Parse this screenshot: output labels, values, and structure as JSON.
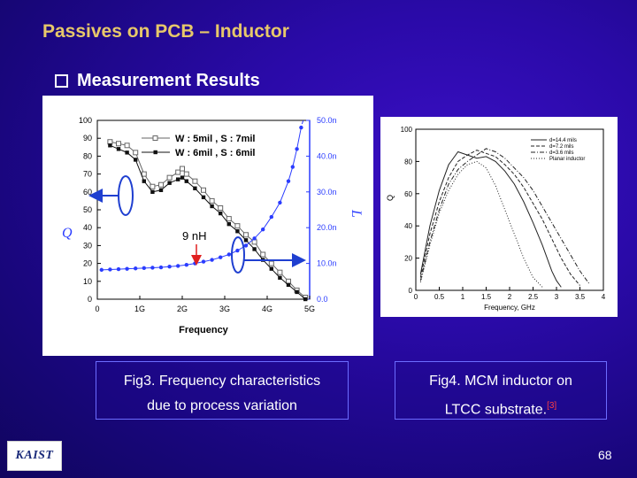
{
  "title": "Passives on PCB – Inductor",
  "bullet": "Measurement Results",
  "fig3": {
    "caption_line1": "Fig3. Frequency characteristics",
    "caption_line2": "due to process variation",
    "legend_1": "W : 5mil , S : 7mil",
    "legend_2": "W : 6mil , S : 6mil",
    "annotation": "9 nH",
    "xlabel": "Frequency",
    "ylabel_left": "Q",
    "ylabel_right": "L"
  },
  "fig4": {
    "caption_line1": "Fig4. MCM inductor on",
    "caption_line2": "LTCC substrate.",
    "ref": "[3]",
    "xlabel": "Frequency, GHz",
    "ylabel": "Q",
    "legend": [
      "d=14.4 mils",
      "d=7.2 mils",
      "d=3.6 mils",
      "Planar inductor"
    ]
  },
  "page_number": "68",
  "logo_text": "KAIST",
  "chart_data": [
    {
      "type": "line",
      "title": "",
      "xlabel": "Frequency",
      "ylabel": "Q",
      "x_ticks": [
        "0",
        "1G",
        "2G",
        "3G",
        "4G",
        "5G"
      ],
      "xlim": [
        0,
        5
      ],
      "ylim": [
        0,
        100
      ],
      "y_ticks": [
        "0",
        "10",
        "20",
        "30",
        "40",
        "50",
        "60",
        "70",
        "80",
        "90",
        "100"
      ],
      "y2_label": "L",
      "y2lim": [
        0,
        50
      ],
      "y2_ticks": [
        "0.0",
        "10.0n",
        "20.0n",
        "30.0n",
        "40.0n",
        "50.0n"
      ],
      "series": [
        {
          "name": "W : 5mil , S : 7mil",
          "axis": "Q",
          "marker": "open-square",
          "x": [
            0.3,
            0.5,
            0.7,
            0.9,
            1.1,
            1.3,
            1.5,
            1.7,
            1.9,
            2.0,
            2.1,
            2.3,
            2.5,
            2.7,
            2.9,
            3.1,
            3.3,
            3.5,
            3.7,
            3.9,
            4.1,
            4.3,
            4.5,
            4.7,
            4.9
          ],
          "y": [
            88,
            87,
            86,
            82,
            70,
            63,
            64,
            68,
            71,
            73,
            70,
            66,
            61,
            55,
            51,
            45,
            41,
            36,
            32,
            25,
            20,
            15,
            10,
            5,
            1
          ]
        },
        {
          "name": "W : 6mil , S : 6mil",
          "axis": "Q",
          "marker": "filled-square",
          "x": [
            0.3,
            0.5,
            0.7,
            0.9,
            1.1,
            1.3,
            1.5,
            1.7,
            1.9,
            2.0,
            2.1,
            2.3,
            2.5,
            2.7,
            2.9,
            3.1,
            3.3,
            3.5,
            3.7,
            3.9,
            4.1,
            4.3,
            4.5,
            4.7,
            4.9
          ],
          "y": [
            86,
            84,
            82,
            78,
            66,
            60,
            61,
            65,
            67,
            68,
            66,
            62,
            57,
            52,
            48,
            42,
            38,
            33,
            28,
            22,
            17,
            12,
            8,
            4,
            0
          ]
        },
        {
          "name": "",
          "axis": "L",
          "marker": "filled-circle",
          "x": [
            0.1,
            0.3,
            0.5,
            0.7,
            0.9,
            1.1,
            1.3,
            1.5,
            1.7,
            1.9,
            2.1,
            2.3,
            2.5,
            2.7,
            2.9,
            3.1,
            3.3,
            3.5,
            3.7,
            3.9,
            4.1,
            4.3,
            4.5,
            4.6,
            4.7,
            4.8
          ],
          "y": [
            8.2,
            8.3,
            8.4,
            8.5,
            8.6,
            8.7,
            8.8,
            8.9,
            9.1,
            9.3,
            9.6,
            10,
            10.5,
            11,
            11.7,
            12.5,
            13.6,
            15,
            17,
            19.5,
            23,
            27,
            33,
            37,
            42,
            48
          ]
        }
      ]
    },
    {
      "type": "line",
      "title": "",
      "xlabel": "Frequency, GHz",
      "ylabel": "Q",
      "xlim": [
        0,
        4
      ],
      "ylim": [
        0,
        100
      ],
      "x_ticks": [
        "0",
        "0.5",
        "1",
        "1.5",
        "2",
        "2.5",
        "3",
        "3.5",
        "4"
      ],
      "y_ticks": [
        "0",
        "20",
        "40",
        "60",
        "80",
        "100"
      ],
      "series": [
        {
          "name": "d=14.4 mils",
          "style": "solid",
          "x": [
            0.1,
            0.3,
            0.5,
            0.7,
            0.9,
            1.1,
            1.3,
            1.5,
            1.7,
            1.9,
            2.1,
            2.3,
            2.5,
            2.7,
            2.9,
            3.0,
            3.1
          ],
          "y": [
            10,
            40,
            62,
            78,
            86,
            84,
            82,
            83,
            80,
            74,
            66,
            55,
            42,
            28,
            12,
            6,
            2
          ]
        },
        {
          "name": "d=7.2 mils",
          "style": "dashed",
          "x": [
            0.1,
            0.3,
            0.5,
            0.7,
            0.9,
            1.1,
            1.3,
            1.5,
            1.7,
            1.9,
            2.1,
            2.3,
            2.5,
            2.7,
            2.9,
            3.1,
            3.3,
            3.5
          ],
          "y": [
            8,
            35,
            55,
            70,
            80,
            84,
            87,
            85,
            83,
            78,
            72,
            64,
            54,
            44,
            32,
            20,
            10,
            3
          ]
        },
        {
          "name": "d=3.6 mils",
          "style": "dash-dot",
          "x": [
            0.1,
            0.3,
            0.5,
            0.7,
            0.9,
            1.1,
            1.3,
            1.5,
            1.7,
            1.9,
            2.1,
            2.3,
            2.5,
            2.7,
            2.9,
            3.1,
            3.3,
            3.5,
            3.7
          ],
          "y": [
            6,
            30,
            50,
            66,
            75,
            80,
            84,
            88,
            86,
            82,
            76,
            70,
            62,
            52,
            42,
            32,
            22,
            12,
            4
          ]
        },
        {
          "name": "Planar inductor",
          "style": "dotted",
          "x": [
            0.1,
            0.3,
            0.5,
            0.7,
            0.9,
            1.1,
            1.3,
            1.5,
            1.7,
            1.9,
            2.1,
            2.3,
            2.5,
            2.7
          ],
          "y": [
            5,
            28,
            48,
            62,
            72,
            78,
            80,
            76,
            65,
            50,
            35,
            20,
            8,
            2
          ]
        }
      ]
    }
  ]
}
